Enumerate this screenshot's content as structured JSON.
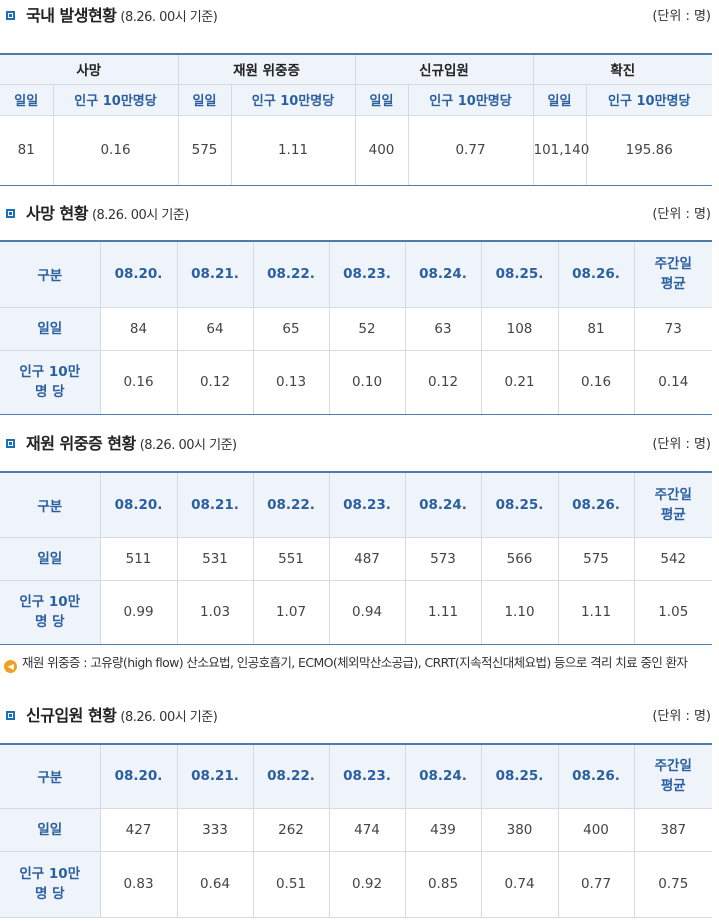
{
  "domestic": {
    "title": "국내 발생현황",
    "date": "(8.26. 00시 기준)",
    "unit": "(단위 : 명)",
    "groups": [
      "사망",
      "재원 위중증",
      "신규입원",
      "확진"
    ],
    "sub_headers": [
      "일일",
      "인구 10만명당",
      "일일",
      "인구 10만명당",
      "일일",
      "인구 10만명당",
      "일일",
      "인구 10만명당"
    ],
    "values": [
      "81",
      "0.16",
      "575",
      "1.11",
      "400",
      "0.77",
      "101,140",
      "195.86"
    ]
  },
  "deaths": {
    "title": "사망 현황",
    "date": "(8.26. 00시 기준)",
    "unit": "(단위 : 명)",
    "col_label": "구분",
    "dates": [
      "08.20.",
      "08.21.",
      "08.22.",
      "08.23.",
      "08.24.",
      "08.25.",
      "08.26."
    ],
    "avg_line1": "주간일",
    "avg_line2": "평균",
    "row1_label": "일일",
    "row1": [
      "84",
      "64",
      "65",
      "52",
      "63",
      "108",
      "81",
      "73"
    ],
    "row2_label1": "인구 10만",
    "row2_label2": "명 당",
    "row2": [
      "0.16",
      "0.12",
      "0.13",
      "0.10",
      "0.12",
      "0.21",
      "0.16",
      "0.14"
    ]
  },
  "critical": {
    "title": "재원 위중증 현황",
    "date": "(8.26. 00시 기준)",
    "unit": "(단위 : 명)",
    "col_label": "구분",
    "dates": [
      "08.20.",
      "08.21.",
      "08.22.",
      "08.23.",
      "08.24.",
      "08.25.",
      "08.26."
    ],
    "avg_line1": "주간일",
    "avg_line2": "평균",
    "row1_label": "일일",
    "row1": [
      "511",
      "531",
      "551",
      "487",
      "573",
      "566",
      "575",
      "542"
    ],
    "row2_label1": "인구 10만",
    "row2_label2": "명 당",
    "row2": [
      "0.99",
      "1.03",
      "1.07",
      "0.94",
      "1.11",
      "1.10",
      "1.11",
      "1.05"
    ]
  },
  "note": {
    "icon": "speaker-icon",
    "text": "재원 위중증 : 고유량(high flow) 산소요법, 인공호흡기, ECMO(체외막산소공급), CRRT(지속적신대체요법) 등으로 격리 치료 중인 환자"
  },
  "admissions": {
    "title": "신규입원 현황",
    "date": "(8.26. 00시 기준)",
    "unit": "(단위 : 명)",
    "col_label": "구분",
    "dates": [
      "08.20.",
      "08.21.",
      "08.22.",
      "08.23.",
      "08.24.",
      "08.25.",
      "08.26."
    ],
    "avg_line1": "주간일",
    "avg_line2": "평균",
    "row1_label": "일일",
    "row1": [
      "427",
      "333",
      "262",
      "474",
      "439",
      "380",
      "400",
      "387"
    ],
    "row2_label1": "인구 10만",
    "row2_label2": "명 당",
    "row2": [
      "0.83",
      "0.64",
      "0.51",
      "0.92",
      "0.85",
      "0.74",
      "0.77",
      "0.75"
    ]
  },
  "colors": {
    "accent": "#1a6fba",
    "header_bg": "#eef4fa",
    "header_text": "#2b5fa0",
    "note_icon": "#f0a020"
  }
}
